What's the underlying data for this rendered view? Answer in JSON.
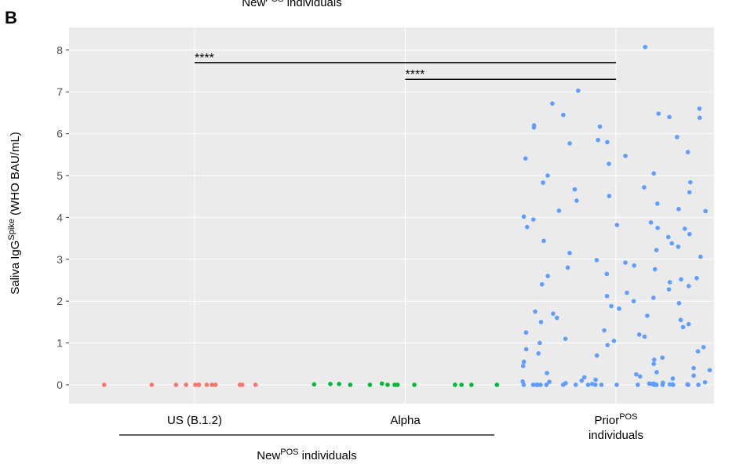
{
  "chart_data": {
    "type": "scatter",
    "panel_label": "B",
    "title": {
      "text": "New",
      "sup": "POS",
      "rest": " individuals"
    },
    "y_label": {
      "text": "Saliva IgG",
      "sup": "Spike",
      "rest": " (WHO BAU/mL)"
    },
    "group_label": {
      "text": "New",
      "sup": "POS",
      "rest": " individuals"
    },
    "categories": [
      "US (B.1.2)",
      "Alpha",
      "Prior"
    ],
    "category_sup": [
      null,
      null,
      "POS"
    ],
    "category_line2": [
      null,
      null,
      "individuals"
    ],
    "ylim": [
      -0.45,
      8.54
    ],
    "yticks": [
      0,
      1,
      2,
      3,
      4,
      5,
      6,
      7,
      8
    ],
    "grid": true,
    "annotations": [
      {
        "text": "****",
        "y": 7.7
      },
      {
        "text": "****",
        "y": 7.3
      }
    ],
    "series": [
      {
        "color": "#f8766d",
        "values": [
          0,
          0,
          0,
          0,
          0,
          0,
          0,
          0,
          0,
          0,
          0,
          0,
          0
        ]
      },
      {
        "color": "#00ba38",
        "values": [
          0,
          0.02,
          0,
          0,
          0,
          0,
          0.02,
          0.03,
          0,
          0.01,
          0,
          0,
          0,
          0
        ]
      },
      {
        "color": "#619cff",
        "values": [
          8.07,
          7.03,
          6.72,
          6.6,
          6.48,
          6.45,
          6.4,
          6.38,
          6.2,
          6.17,
          6.15,
          5.92,
          5.85,
          5.8,
          5.77,
          5.56,
          5.47,
          5.41,
          5.28,
          5.05,
          5.0,
          4.84,
          4.83,
          4.72,
          4.67,
          4.6,
          4.51,
          4.4,
          4.33,
          4.2,
          4.16,
          4.15,
          4.02,
          3.95,
          3.88,
          3.82,
          3.77,
          3.75,
          3.73,
          3.6,
          3.53,
          3.44,
          3.38,
          3.3,
          3.22,
          3.15,
          3.06,
          2.98,
          2.92,
          2.85,
          2.8,
          2.76,
          2.65,
          2.6,
          2.55,
          2.52,
          2.45,
          2.4,
          2.36,
          2.28,
          2.2,
          2.12,
          2.08,
          2.0,
          1.95,
          1.88,
          1.82,
          1.75,
          1.7,
          1.65,
          1.6,
          1.55,
          1.5,
          1.45,
          1.38,
          1.3,
          1.25,
          1.2,
          1.15,
          1.1,
          1.05,
          1.0,
          0.95,
          0.9,
          0.85,
          0.8,
          0.75,
          0.7,
          0.65,
          0.6,
          0.55,
          0.5,
          0.45,
          0.4,
          0.35,
          0.3,
          0.28,
          0.25,
          0.22,
          0.2,
          0.18,
          0.15,
          0.12,
          0.1,
          0.08,
          0.07,
          0.06,
          0.05,
          0.04,
          0.03,
          0.03,
          0.02,
          0.02,
          0.01,
          0.01,
          0.01,
          0,
          0,
          0,
          0,
          0,
          0,
          0,
          0,
          0,
          0,
          0,
          0,
          0,
          0,
          0,
          0,
          0,
          0,
          0,
          0
        ]
      }
    ]
  }
}
